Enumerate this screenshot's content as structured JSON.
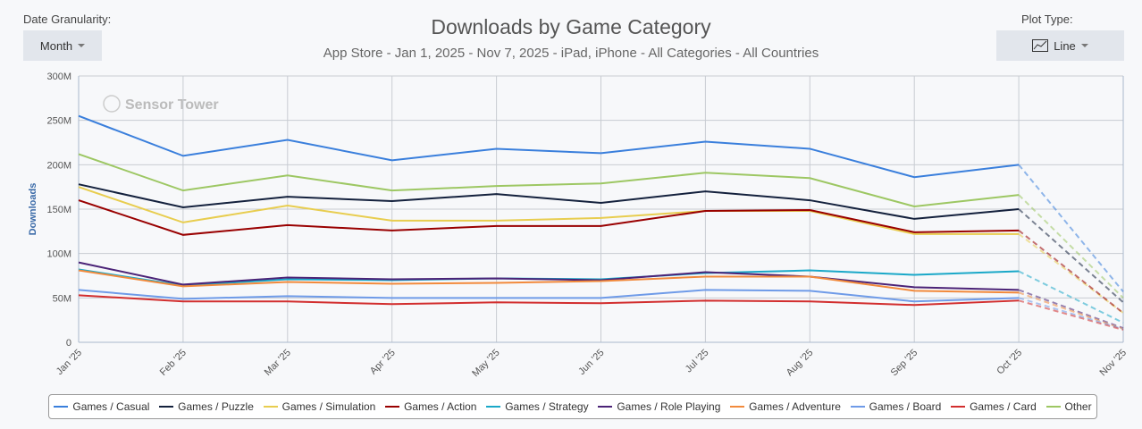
{
  "controls": {
    "granularity_label": "Date Granularity:",
    "granularity_value": "Month",
    "plot_type_label": "Plot Type:",
    "plot_type_value": "Line",
    "plot_type_icon": "line-chart-icon"
  },
  "watermark": "Sensor Tower",
  "chart_data": {
    "type": "line",
    "title": "Downloads by Game Category",
    "subtitle": "App Store - Jan 1, 2025 - Nov 7, 2025 - iPad, iPhone - All Categories - All Countries",
    "ylabel": "Downloads",
    "ylim": [
      0,
      300
    ],
    "yticks": [
      "0",
      "50M",
      "100M",
      "150M",
      "200M",
      "250M",
      "300M"
    ],
    "categories": [
      "Jan '25",
      "Feb '25",
      "Mar '25",
      "Apr '25",
      "May '25",
      "Jun '25",
      "Jul '25",
      "Aug '25",
      "Sep '25",
      "Oct '25",
      "Nov '25"
    ],
    "unit": "millions",
    "last_point_partial": true,
    "grid": true,
    "legend_placement": "bottom",
    "series": [
      {
        "name": "Games / Casual",
        "color": "#3a7fdc",
        "values": [
          255,
          210,
          228,
          205,
          218,
          213,
          226,
          218,
          186,
          200,
          57
        ]
      },
      {
        "name": "Games / Puzzle",
        "color": "#14213d",
        "values": [
          178,
          152,
          164,
          159,
          167,
          157,
          170,
          160,
          139,
          150,
          45
        ]
      },
      {
        "name": "Games / Simulation",
        "color": "#e8cd4f",
        "values": [
          175,
          135,
          154,
          137,
          137,
          140,
          148,
          148,
          122,
          122,
          33
        ]
      },
      {
        "name": "Games / Action",
        "color": "#990000",
        "values": [
          160,
          121,
          132,
          126,
          131,
          131,
          148,
          149,
          124,
          126,
          33
        ]
      },
      {
        "name": "Games / Strategy",
        "color": "#1aa8c8",
        "values": [
          82,
          64,
          71,
          70,
          72,
          71,
          78,
          81,
          76,
          80,
          22
        ]
      },
      {
        "name": "Games / Role Playing",
        "color": "#4b2377",
        "values": [
          90,
          65,
          73,
          71,
          72,
          70,
          79,
          74,
          62,
          59,
          16
        ]
      },
      {
        "name": "Games / Adventure",
        "color": "#f28a3c",
        "values": [
          81,
          63,
          68,
          66,
          67,
          69,
          74,
          74,
          58,
          56,
          15
        ]
      },
      {
        "name": "Games / Board",
        "color": "#6f9be8",
        "values": [
          59,
          49,
          52,
          50,
          50,
          50,
          59,
          58,
          46,
          50,
          15
        ]
      },
      {
        "name": "Games / Card",
        "color": "#d22e2e",
        "values": [
          53,
          46,
          46,
          43,
          45,
          44,
          47,
          46,
          42,
          47,
          14
        ]
      },
      {
        "name": "Other",
        "color": "#9dc763",
        "values": [
          212,
          171,
          188,
          171,
          176,
          179,
          191,
          185,
          153,
          166,
          50
        ]
      }
    ]
  }
}
